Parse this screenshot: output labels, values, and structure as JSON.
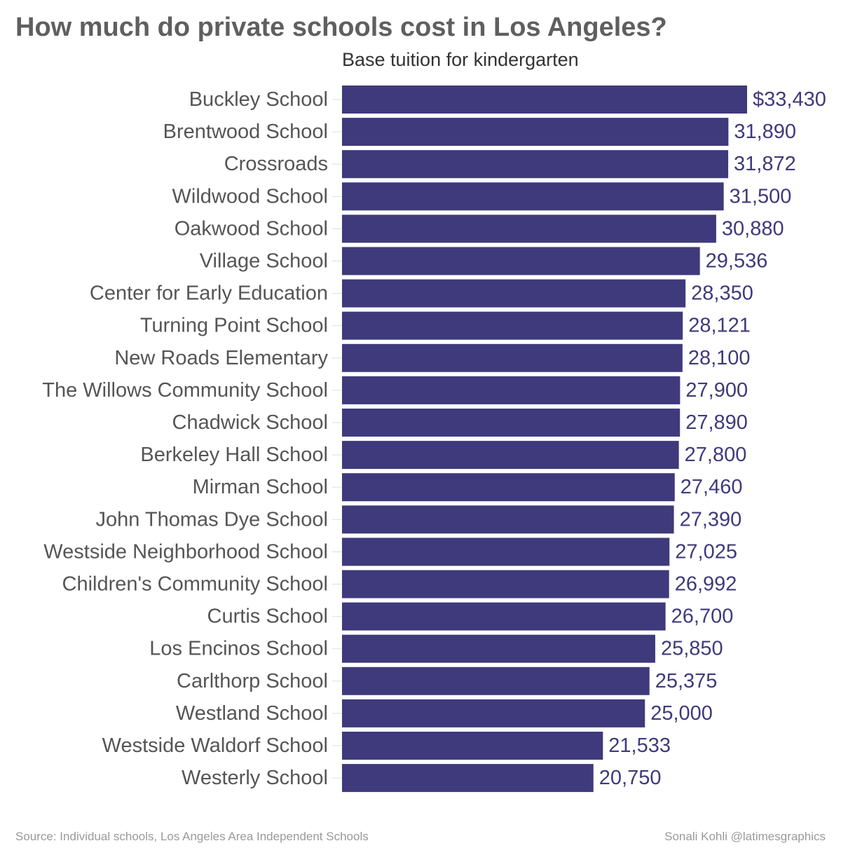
{
  "chart_data": {
    "type": "bar",
    "orientation": "horizontal",
    "title": "How much do private schools cost in Los Angeles?",
    "subtitle": "Base tuition for kindergarten",
    "value_prefix_first": "$",
    "categories": [
      "Buckley School",
      "Brentwood School",
      "Crossroads",
      "Wildwood School",
      "Oakwood School",
      "Village School",
      "Center for Early Education",
      "Turning Point School",
      "New Roads Elementary",
      "The Willows Community School",
      "Chadwick School",
      "Berkeley Hall School",
      "Mirman School",
      "John Thomas Dye School",
      "Westside Neighborhood School",
      "Children's Community School",
      "Curtis School",
      "Los Encinos School",
      "Carlthorp School",
      "Westland School",
      "Westside Waldorf School",
      "Westerly School"
    ],
    "values": [
      33430,
      31890,
      31872,
      31500,
      30880,
      29536,
      28350,
      28121,
      28100,
      27900,
      27890,
      27800,
      27460,
      27390,
      27025,
      26992,
      26700,
      25850,
      25375,
      25000,
      21533,
      20750
    ],
    "value_labels": [
      "$33,430",
      "31,890",
      "31,872",
      "31,500",
      "30,880",
      "29,536",
      "28,350",
      "28,121",
      "28,100",
      "27,900",
      "27,890",
      "27,800",
      "27,460",
      "27,390",
      "27,025",
      "26,992",
      "26,700",
      "25,850",
      "25,375",
      "25,000",
      "21,533",
      "20,750"
    ],
    "xlim": [
      0,
      33430
    ],
    "xlabel": "",
    "ylabel": "",
    "grid": false,
    "legend": "none",
    "bar_color": "#3f3a7c",
    "category_label_color": "#555555",
    "value_label_color": "#3f3a7c"
  },
  "footer": {
    "source": "Source: Individual schools, Los Angeles Area Independent Schools",
    "credit": "Sonali Kohli @latimesgraphics"
  }
}
